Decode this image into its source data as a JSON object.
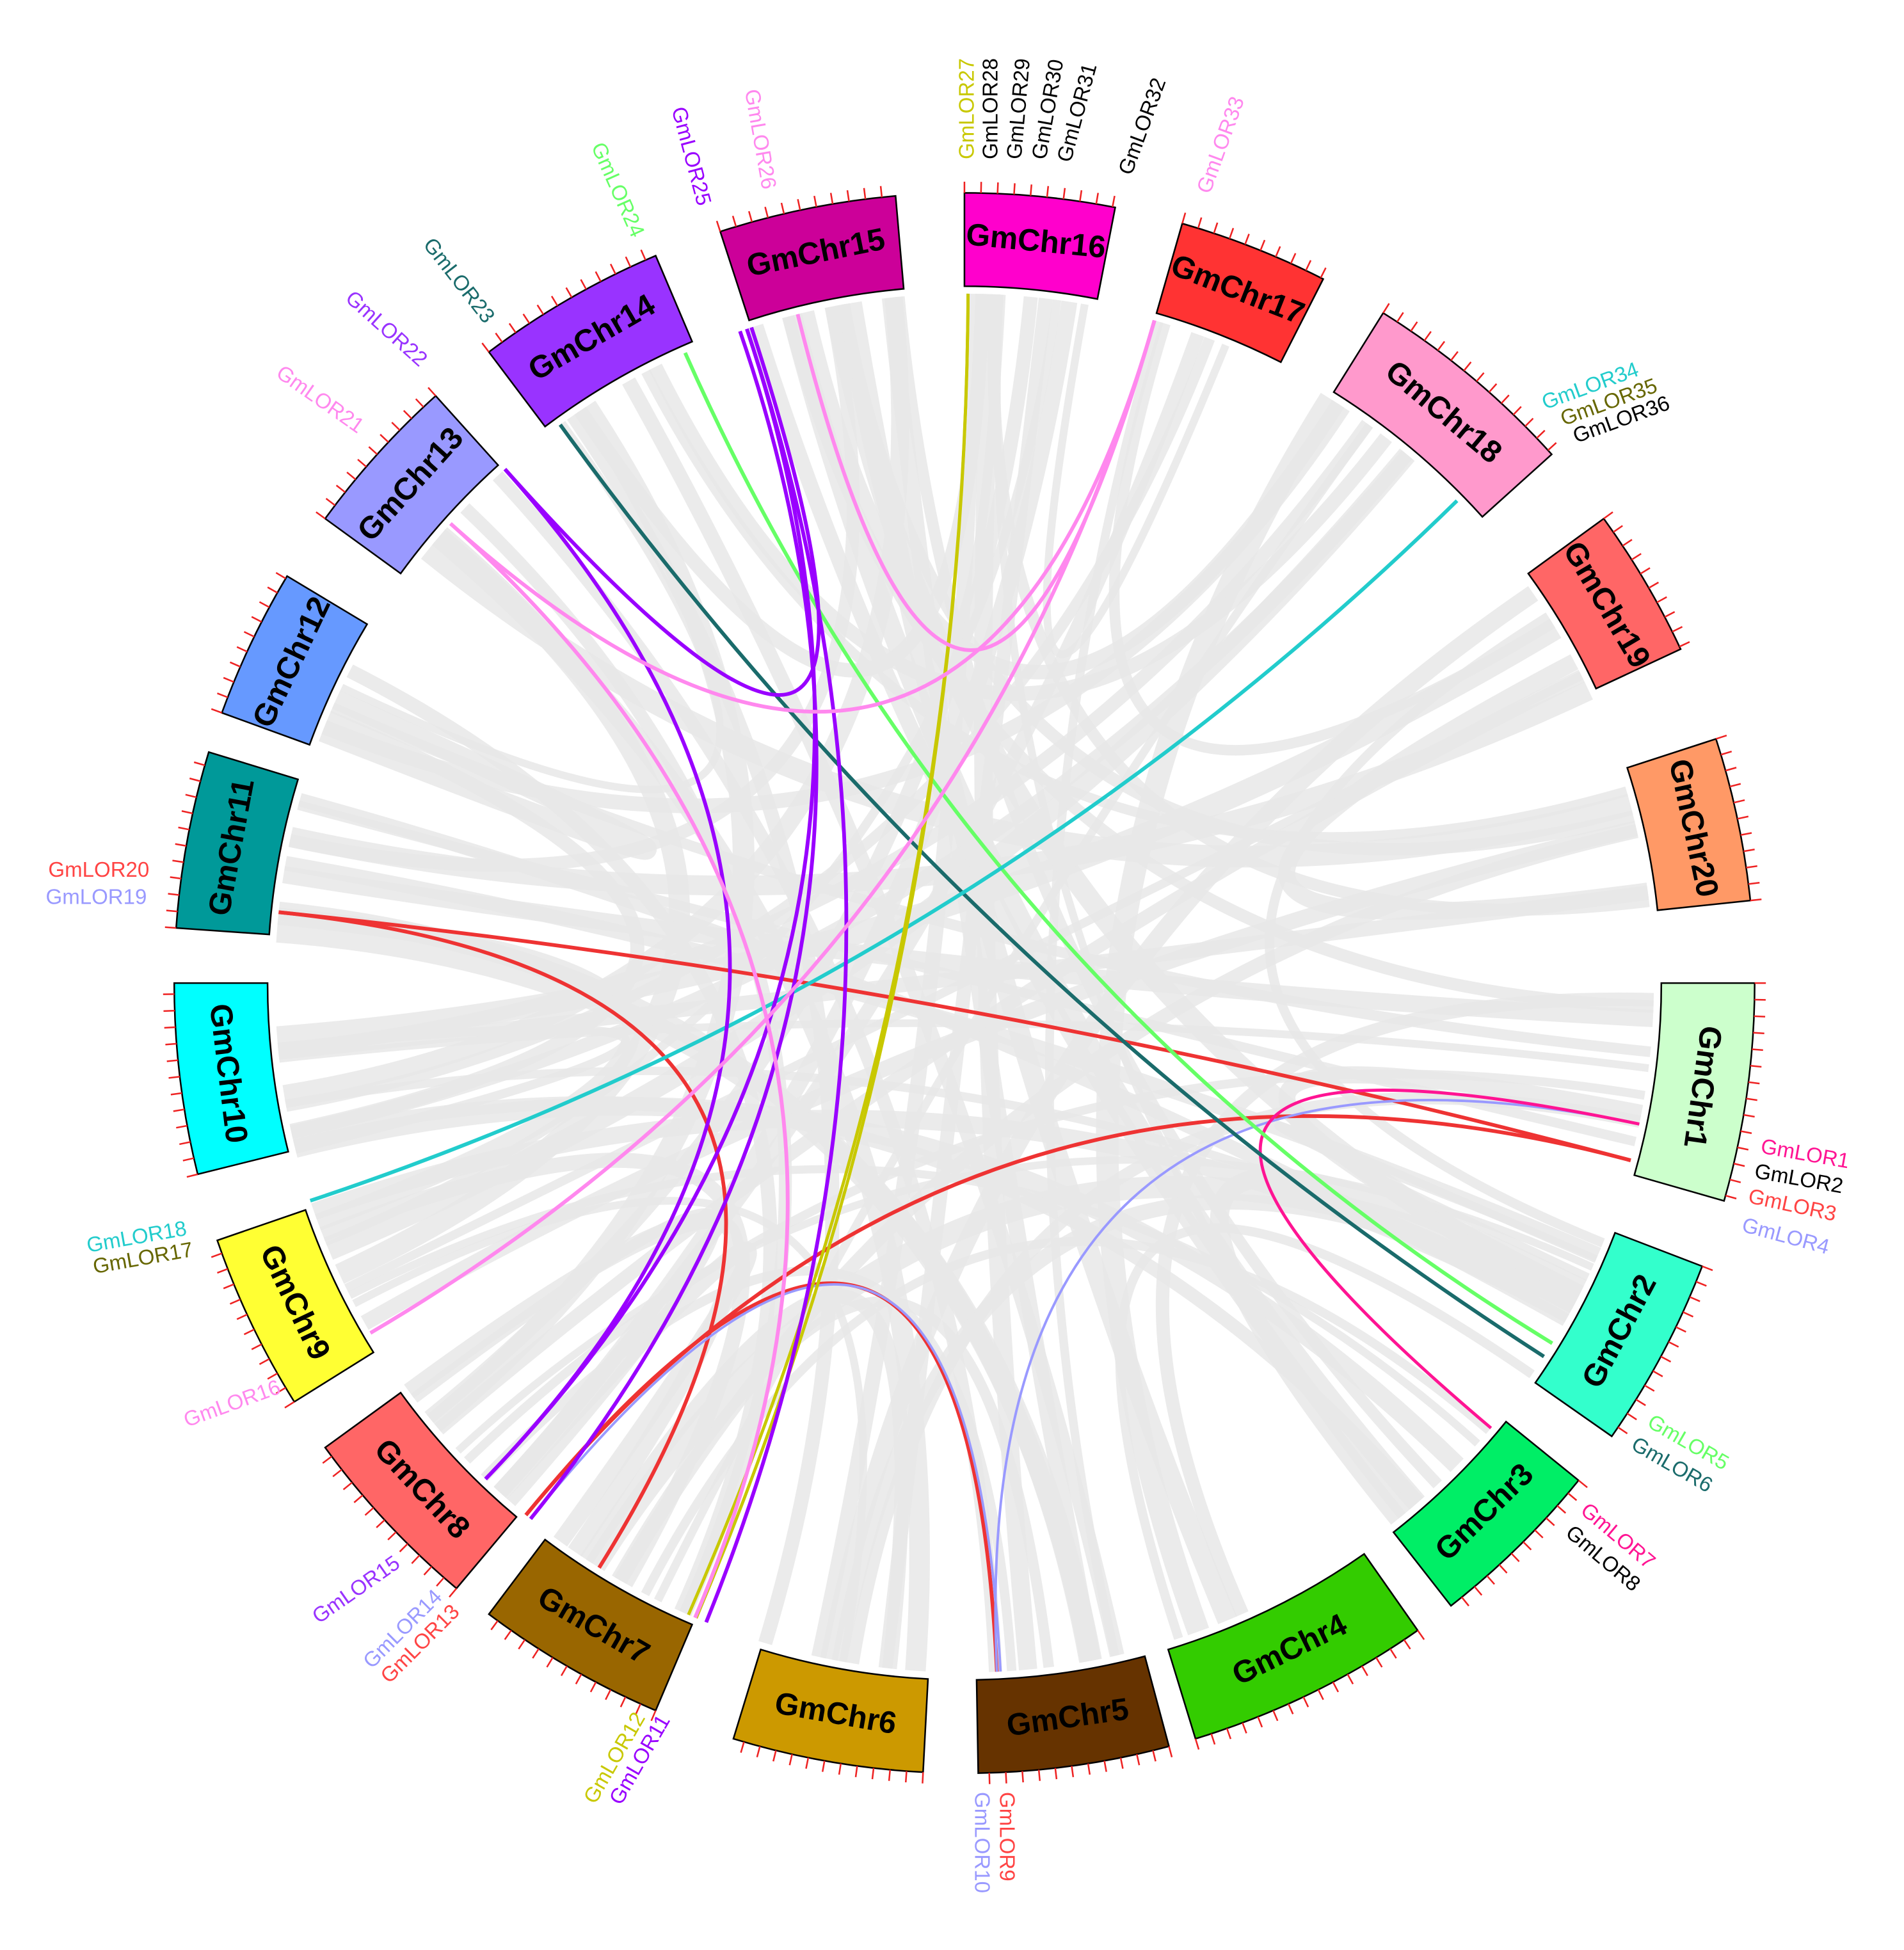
{
  "chromosomes": [
    {
      "label": "GmChr1",
      "color": "#ccffcc"
    },
    {
      "label": "GmChr2",
      "color": "#33ffcc"
    },
    {
      "label": "GmChr3",
      "color": "#00ee66"
    },
    {
      "label": "GmChr4",
      "color": "#33cc00"
    },
    {
      "label": "GmChr5",
      "color": "#663300"
    },
    {
      "label": "GmChr6",
      "color": "#cc9900"
    },
    {
      "label": "GmChr7",
      "color": "#996600"
    },
    {
      "label": "GmChr8",
      "color": "#ff6666"
    },
    {
      "label": "GmChr9",
      "color": "#ffff33"
    },
    {
      "label": "GmChr10",
      "color": "#00ffff"
    },
    {
      "label": "GmChr11",
      "color": "#009999"
    },
    {
      "label": "GmChr12",
      "color": "#6699ff"
    },
    {
      "label": "GmChr13",
      "color": "#9999ff"
    },
    {
      "label": "GmChr14",
      "color": "#9933ff"
    },
    {
      "label": "GmChr15",
      "color": "#cc0099"
    },
    {
      "label": "GmChr16",
      "color": "#ff00cc"
    },
    {
      "label": "GmChr17",
      "color": "#ff3333"
    },
    {
      "label": "GmChr18",
      "color": "#ff99cc"
    },
    {
      "label": "GmChr19",
      "color": "#ff6666"
    },
    {
      "label": "GmChr20",
      "color": "#ff9966"
    }
  ],
  "genes": [
    {
      "label": "GmLOR1",
      "color": "#ff1493"
    },
    {
      "label": "GmLOR2",
      "color": "#000000"
    },
    {
      "label": "GmLOR3",
      "color": "#ff4444"
    },
    {
      "label": "GmLOR4",
      "color": "#9999ff"
    },
    {
      "label": "GmLOR5",
      "color": "#66ff66"
    },
    {
      "label": "GmLOR6",
      "color": "#1a6b6b"
    },
    {
      "label": "GmLOR7",
      "color": "#ff1493"
    },
    {
      "label": "GmLOR8",
      "color": "#000000"
    },
    {
      "label": "GmLOR9",
      "color": "#ff4444"
    },
    {
      "label": "GmLOR10",
      "color": "#9999ff"
    },
    {
      "label": "GmLOR11",
      "color": "#9900ff"
    },
    {
      "label": "GmLOR12",
      "color": "#c8c800"
    },
    {
      "label": "GmLOR13",
      "color": "#ff4444"
    },
    {
      "label": "GmLOR14",
      "color": "#9999ff"
    },
    {
      "label": "GmLOR15",
      "color": "#9933ff"
    },
    {
      "label": "GmLOR16",
      "color": "#ff88ee"
    },
    {
      "label": "GmLOR17",
      "color": "#666600"
    },
    {
      "label": "GmLOR18",
      "color": "#22cccc"
    },
    {
      "label": "GmLOR19",
      "color": "#9999ff"
    },
    {
      "label": "GmLOR20",
      "color": "#ff4444"
    },
    {
      "label": "GmLOR21",
      "color": "#ff88ee"
    },
    {
      "label": "GmLOR22",
      "color": "#9933ff"
    },
    {
      "label": "GmLOR23",
      "color": "#1a6b6b"
    },
    {
      "label": "GmLOR24",
      "color": "#66ff66"
    },
    {
      "label": "GmLOR25",
      "color": "#9900ff"
    },
    {
      "label": "GmLOR26",
      "color": "#ff88ee"
    },
    {
      "label": "GmLOR27",
      "color": "#c8c800"
    },
    {
      "label": "GmLOR28",
      "color": "#000000"
    },
    {
      "label": "GmLOR29",
      "color": "#000000"
    },
    {
      "label": "GmLOR30",
      "color": "#000000"
    },
    {
      "label": "GmLOR31",
      "color": "#000000"
    },
    {
      "label": "GmLOR32",
      "color": "#000000"
    },
    {
      "label": "GmLOR33",
      "color": "#ff88ee"
    },
    {
      "label": "GmLOR34",
      "color": "#22cccc"
    },
    {
      "label": "GmLOR35",
      "color": "#666600"
    },
    {
      "label": "GmLOR36",
      "color": "#000000"
    }
  ]
}
